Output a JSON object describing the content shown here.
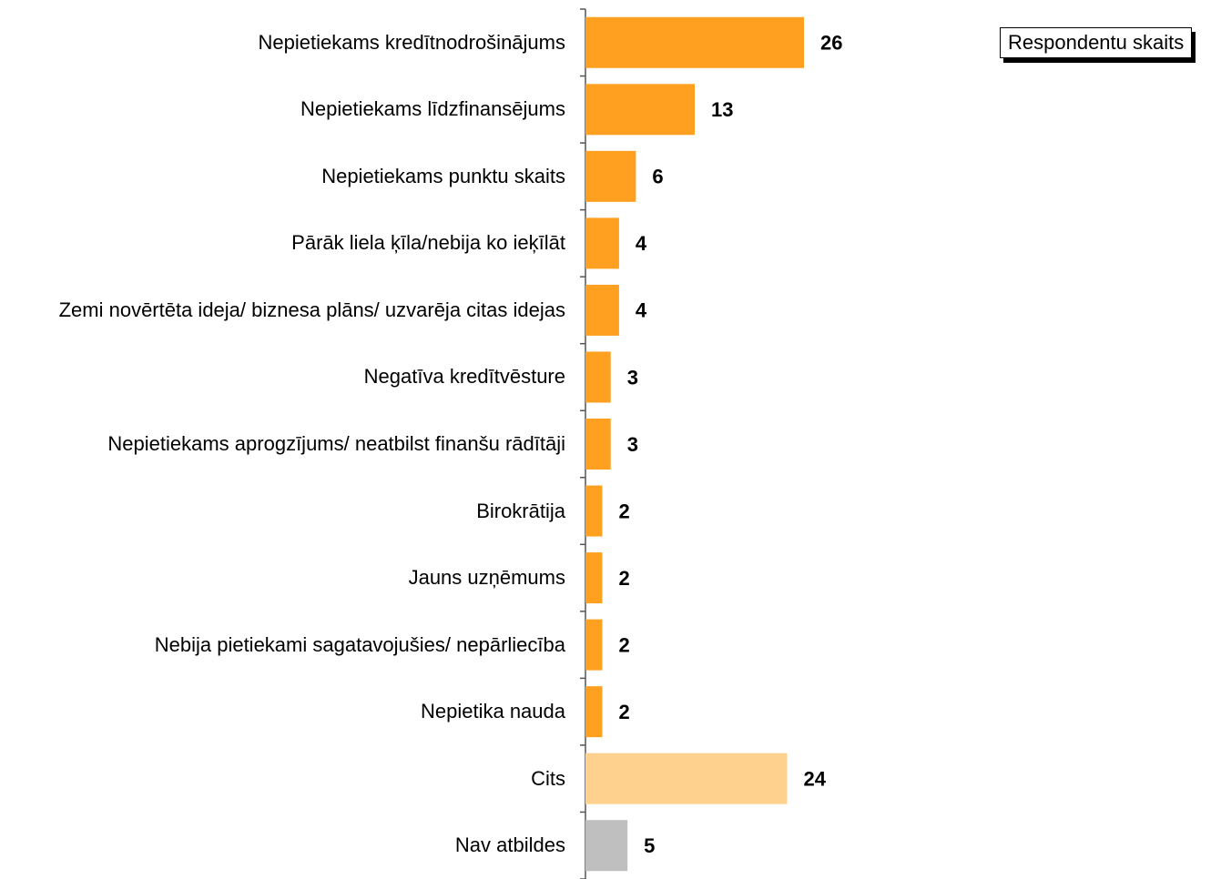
{
  "chart_data": {
    "type": "bar",
    "orientation": "horizontal",
    "categories": [
      "Nepietiekams kredītnodrošinājums",
      "Nepietiekams līdzfinansējums",
      "Nepietiekams punktu skaits",
      "Pārāk liela ķīla/nebija ko ieķīlāt",
      "Zemi novērtēta ideja/ biznesa plāns/ uzvarēja citas idejas",
      "Negatīva kredītvēsture",
      "Nepietiekams aprogzījums/ neatbilst finanšu rādītāji",
      "Birokrātija",
      "Jauns uzņēmums",
      "Nebija pietiekami sagatavojušies/ nepārliecība",
      "Nepietika nauda",
      "Cits",
      "Nav atbildes"
    ],
    "series": [
      {
        "name": "Respondentu skaits",
        "values": [
          26,
          13,
          6,
          4,
          4,
          3,
          3,
          2,
          2,
          2,
          2,
          24,
          5
        ],
        "colors": [
          "#ffa020",
          "#ffa020",
          "#ffa020",
          "#ffa020",
          "#ffa020",
          "#ffa020",
          "#ffa020",
          "#ffa020",
          "#ffa020",
          "#ffa020",
          "#ffa020",
          "#ffd18f",
          "#bfbfbf"
        ]
      }
    ],
    "legend": "top-right"
  }
}
